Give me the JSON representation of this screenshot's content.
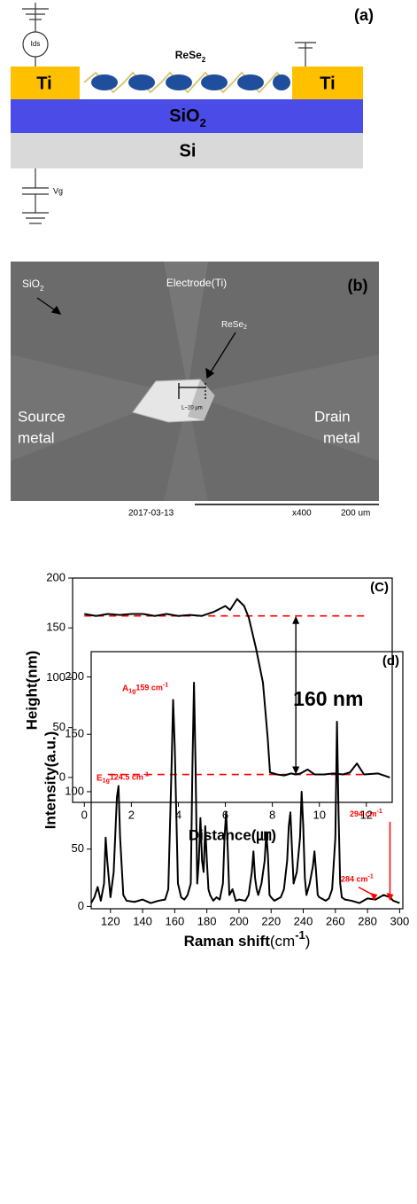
{
  "diagram_a": {
    "label": "(a)",
    "material": "ReSe",
    "material_sub": "2",
    "ti_left": "Ti",
    "ti_right": "Ti",
    "sio2": "SiO",
    "sio2_sub": "2",
    "si": "Si",
    "ids": "Ids",
    "vg": "Vg"
  },
  "image_b": {
    "label": "(b)",
    "sio2": "SiO",
    "sio2_sub": "2",
    "electrode": "Electrode(Ti)",
    "rese2": "ReSe",
    "rese2_sub": "2",
    "scale_mark": "L~20 µm",
    "source": [
      "Source",
      "metal"
    ],
    "drain": [
      "Drain",
      "metal"
    ],
    "date": "2017-03-13",
    "magnification": "x400",
    "scale_bar": "200 um"
  },
  "chart_data": [
    {
      "type": "line",
      "panel_label": "(C)",
      "y_label": "Height(nm)",
      "x_label": "Distance(㎛)",
      "color": "#000000",
      "x": [
        0,
        0.5,
        1,
        1.5,
        2,
        2.5,
        3,
        3.5,
        4,
        4.5,
        5,
        5.5,
        6,
        6.2,
        6.5,
        6.8,
        7,
        7.3,
        7.6,
        7.8,
        7.9,
        8.2,
        8.5,
        8.8,
        9.0,
        9.2,
        9.5,
        9.8,
        10.2,
        10.6,
        11,
        11.3,
        11.6,
        11.9,
        12.5,
        13
      ],
      "values": [
        164,
        162,
        164,
        163,
        164,
        164,
        162,
        164,
        162,
        163,
        162,
        166,
        172,
        168,
        179,
        172,
        160,
        130,
        95,
        40,
        5,
        3,
        2,
        4,
        3,
        4,
        8,
        3,
        3,
        4,
        3,
        5,
        14,
        3,
        4,
        0
      ],
      "xlim": [
        -0.5,
        13.1
      ],
      "ylim": [
        -25,
        200
      ],
      "xticks": [
        0,
        2,
        4,
        6,
        8,
        10,
        12
      ],
      "yticks": [
        0,
        50,
        100,
        150,
        200
      ],
      "reference_lines": [
        {
          "y": 162,
          "x": [
            0,
            12
          ],
          "color": "#ff0000"
        },
        {
          "y": 3,
          "x": [
            1,
            12
          ],
          "color": "#ff0000"
        }
      ],
      "arrow": {
        "x": 9,
        "y": [
          3,
          162
        ],
        "label": "160 nm"
      }
    },
    {
      "type": "line",
      "panel_label": "(d)",
      "y_label": "Intensity(a.u.)",
      "x_label": "Raman shift",
      "x_label_unit": "(cm",
      "x_label_sup": "-1",
      "x_label_end": ")",
      "color": "#000000",
      "x": [
        108,
        110,
        112,
        114,
        116,
        117,
        118,
        120,
        122,
        124,
        125,
        126,
        128,
        130,
        135,
        140,
        145,
        150,
        154,
        156,
        158,
        159,
        160,
        162,
        164,
        166,
        168,
        170,
        171,
        172,
        173,
        174,
        175,
        176,
        177,
        178,
        179,
        180,
        181,
        182,
        184,
        186,
        188,
        190,
        191,
        192,
        193,
        194,
        196,
        198,
        200,
        204,
        206,
        208,
        209,
        210,
        211,
        212,
        214,
        216,
        217,
        218,
        219,
        220,
        222,
        226,
        228,
        230,
        231,
        232,
        233,
        234,
        236,
        238,
        239,
        240,
        241,
        242,
        244,
        246,
        247,
        248,
        249,
        250,
        254,
        256,
        258,
        260,
        261,
        262,
        263,
        264,
        266,
        270,
        275,
        280,
        285,
        290,
        294,
        296,
        300
      ],
      "values": [
        3,
        8,
        17,
        5,
        20,
        60,
        40,
        8,
        30,
        95,
        105,
        60,
        10,
        5,
        4,
        6,
        3,
        5,
        6,
        15,
        120,
        180,
        140,
        20,
        8,
        6,
        10,
        20,
        120,
        195,
        120,
        20,
        40,
        77,
        40,
        30,
        70,
        40,
        15,
        10,
        5,
        8,
        6,
        20,
        60,
        82,
        50,
        10,
        15,
        5,
        6,
        5,
        10,
        30,
        48,
        25,
        15,
        10,
        20,
        40,
        64,
        45,
        10,
        8,
        5,
        8,
        15,
        40,
        70,
        82,
        50,
        20,
        30,
        60,
        100,
        70,
        25,
        10,
        20,
        35,
        48,
        30,
        10,
        8,
        5,
        7,
        15,
        60,
        161,
        80,
        20,
        8,
        6,
        5,
        3,
        7,
        6,
        10,
        8,
        5,
        3
      ],
      "xlim": [
        108,
        302
      ],
      "ylim": [
        -2,
        222
      ],
      "xticks": [
        120,
        140,
        160,
        180,
        200,
        220,
        240,
        260,
        280,
        300
      ],
      "yticks": [
        0,
        50,
        100,
        150,
        200
      ],
      "annotations": [
        {
          "base": "E",
          "sub": "1g",
          "text": "124.5 cm",
          "sup": "-1",
          "color": "#ff0000"
        },
        {
          "base": "A",
          "sub": "1g",
          "text": "159 cm",
          "sup": "-1",
          "color": "#ff0000"
        },
        {
          "text": "284 cm",
          "sup": "-1",
          "x": 284,
          "color": "#ff0000"
        },
        {
          "text": "294 cm",
          "sup": "-1",
          "x": 294,
          "color": "#ff0000"
        }
      ]
    }
  ]
}
